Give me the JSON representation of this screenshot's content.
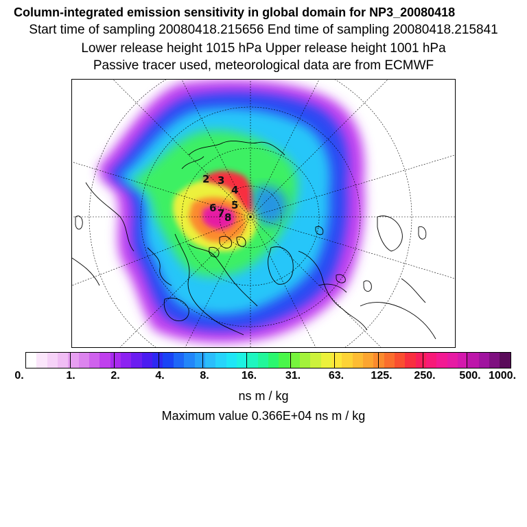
{
  "title": {
    "line1": "Column-integrated emission sensitivity in global domain for NP3_20080418",
    "line2": "Start time of sampling 20080418.215656      End time of sampling 20080418.215841",
    "line3": "Lower release height 1015 hPa        Upper release height 1001 hPa",
    "line4": "Passive tracer used, meteorological data are from ECMWF"
  },
  "map": {
    "projection": "polar stereographic (north pole)",
    "contour_labels": [
      "2",
      "3",
      "4",
      "5",
      "6",
      "7",
      "8"
    ]
  },
  "colorbar": {
    "colors": [
      "#ffffff",
      "#fbe6fb",
      "#f6d2f8",
      "#f0bdf4",
      "#e79ff1",
      "#dc84ee",
      "#cf62ed",
      "#c040ee",
      "#a92af0",
      "#8c22f1",
      "#6b1ef1",
      "#4b1cf1",
      "#2d29f2",
      "#1a44f5",
      "#1d67f7",
      "#2286f9",
      "#27a2fa",
      "#2bbefb",
      "#27d4fb",
      "#1fe6f6",
      "#1ef2e2",
      "#1ff6c0",
      "#22f79a",
      "#2bf76f",
      "#4af64a",
      "#76f43d",
      "#a3f23b",
      "#cdf23c",
      "#ecf13c",
      "#fde73a",
      "#fdd336",
      "#fdbc33",
      "#fca530",
      "#fb8b2e",
      "#fa6e2d",
      "#f94f30",
      "#f82f3f",
      "#f81e5b",
      "#f71a78",
      "#f21a93",
      "#e61aa3",
      "#d418ad",
      "#bd16aa",
      "#a0149f",
      "#7e1080",
      "#5a0c5a"
    ],
    "tick_labels": [
      "0.",
      "1.",
      "2.",
      "4.",
      "8.",
      "16.",
      "31.",
      "63.",
      "125.",
      "250.",
      "500.",
      "1000."
    ],
    "unit": "ns m / kg"
  },
  "maximum": "Maximum value  0.366E+04 ns m / kg"
}
